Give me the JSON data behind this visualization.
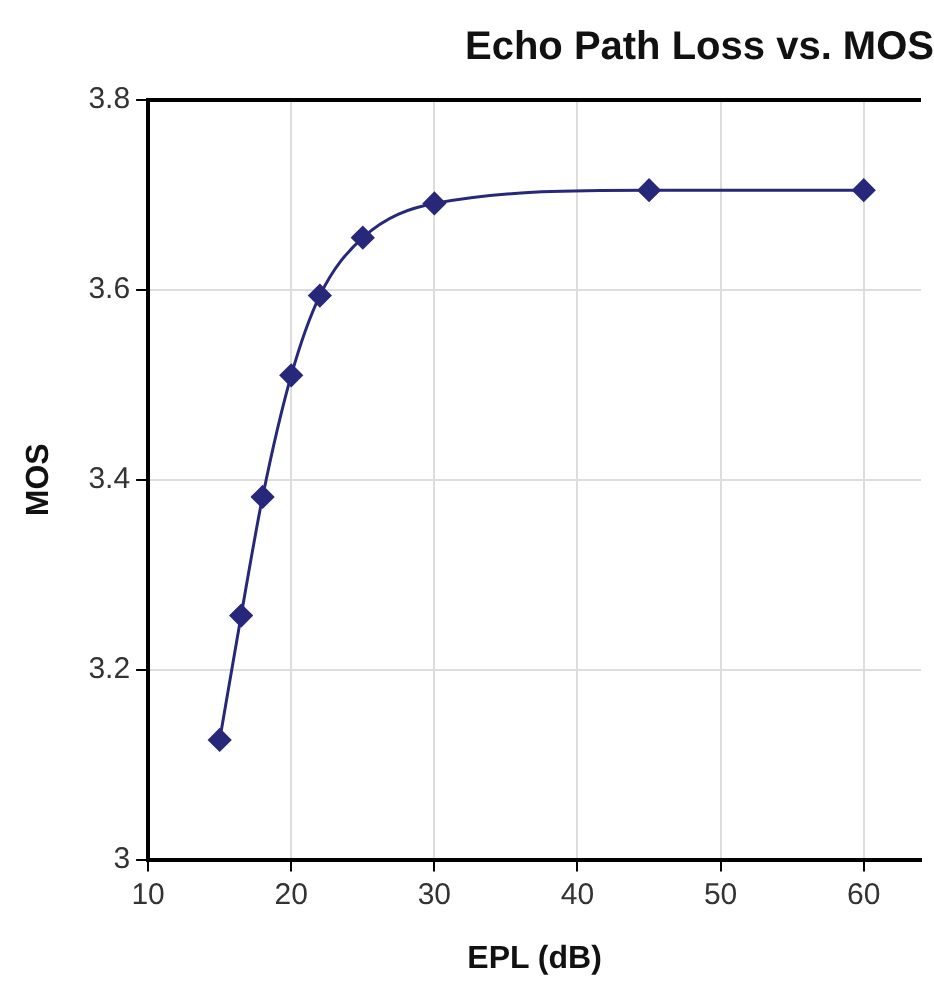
{
  "chart_data": {
    "type": "line",
    "title": "Echo Path Loss vs. MOS",
    "xlabel": "EPL (dB)",
    "ylabel": "MOS",
    "x": [
      15,
      16.5,
      18,
      20,
      22,
      25,
      30,
      45,
      60
    ],
    "series": [
      {
        "color": "#28287a",
        "values": [
          3.126,
          3.257,
          3.382,
          3.51,
          3.594,
          3.655,
          3.691,
          3.705,
          3.705
        ]
      }
    ],
    "xlim": [
      10,
      64
    ],
    "xticks": [
      10,
      20,
      30,
      40,
      50,
      60
    ],
    "ylim": [
      3,
      3.8
    ],
    "yticks": [
      3,
      3.2,
      3.4,
      3.6,
      3.8
    ],
    "grid": true,
    "legend": false,
    "marker": "diamond",
    "line_style": "solid"
  }
}
